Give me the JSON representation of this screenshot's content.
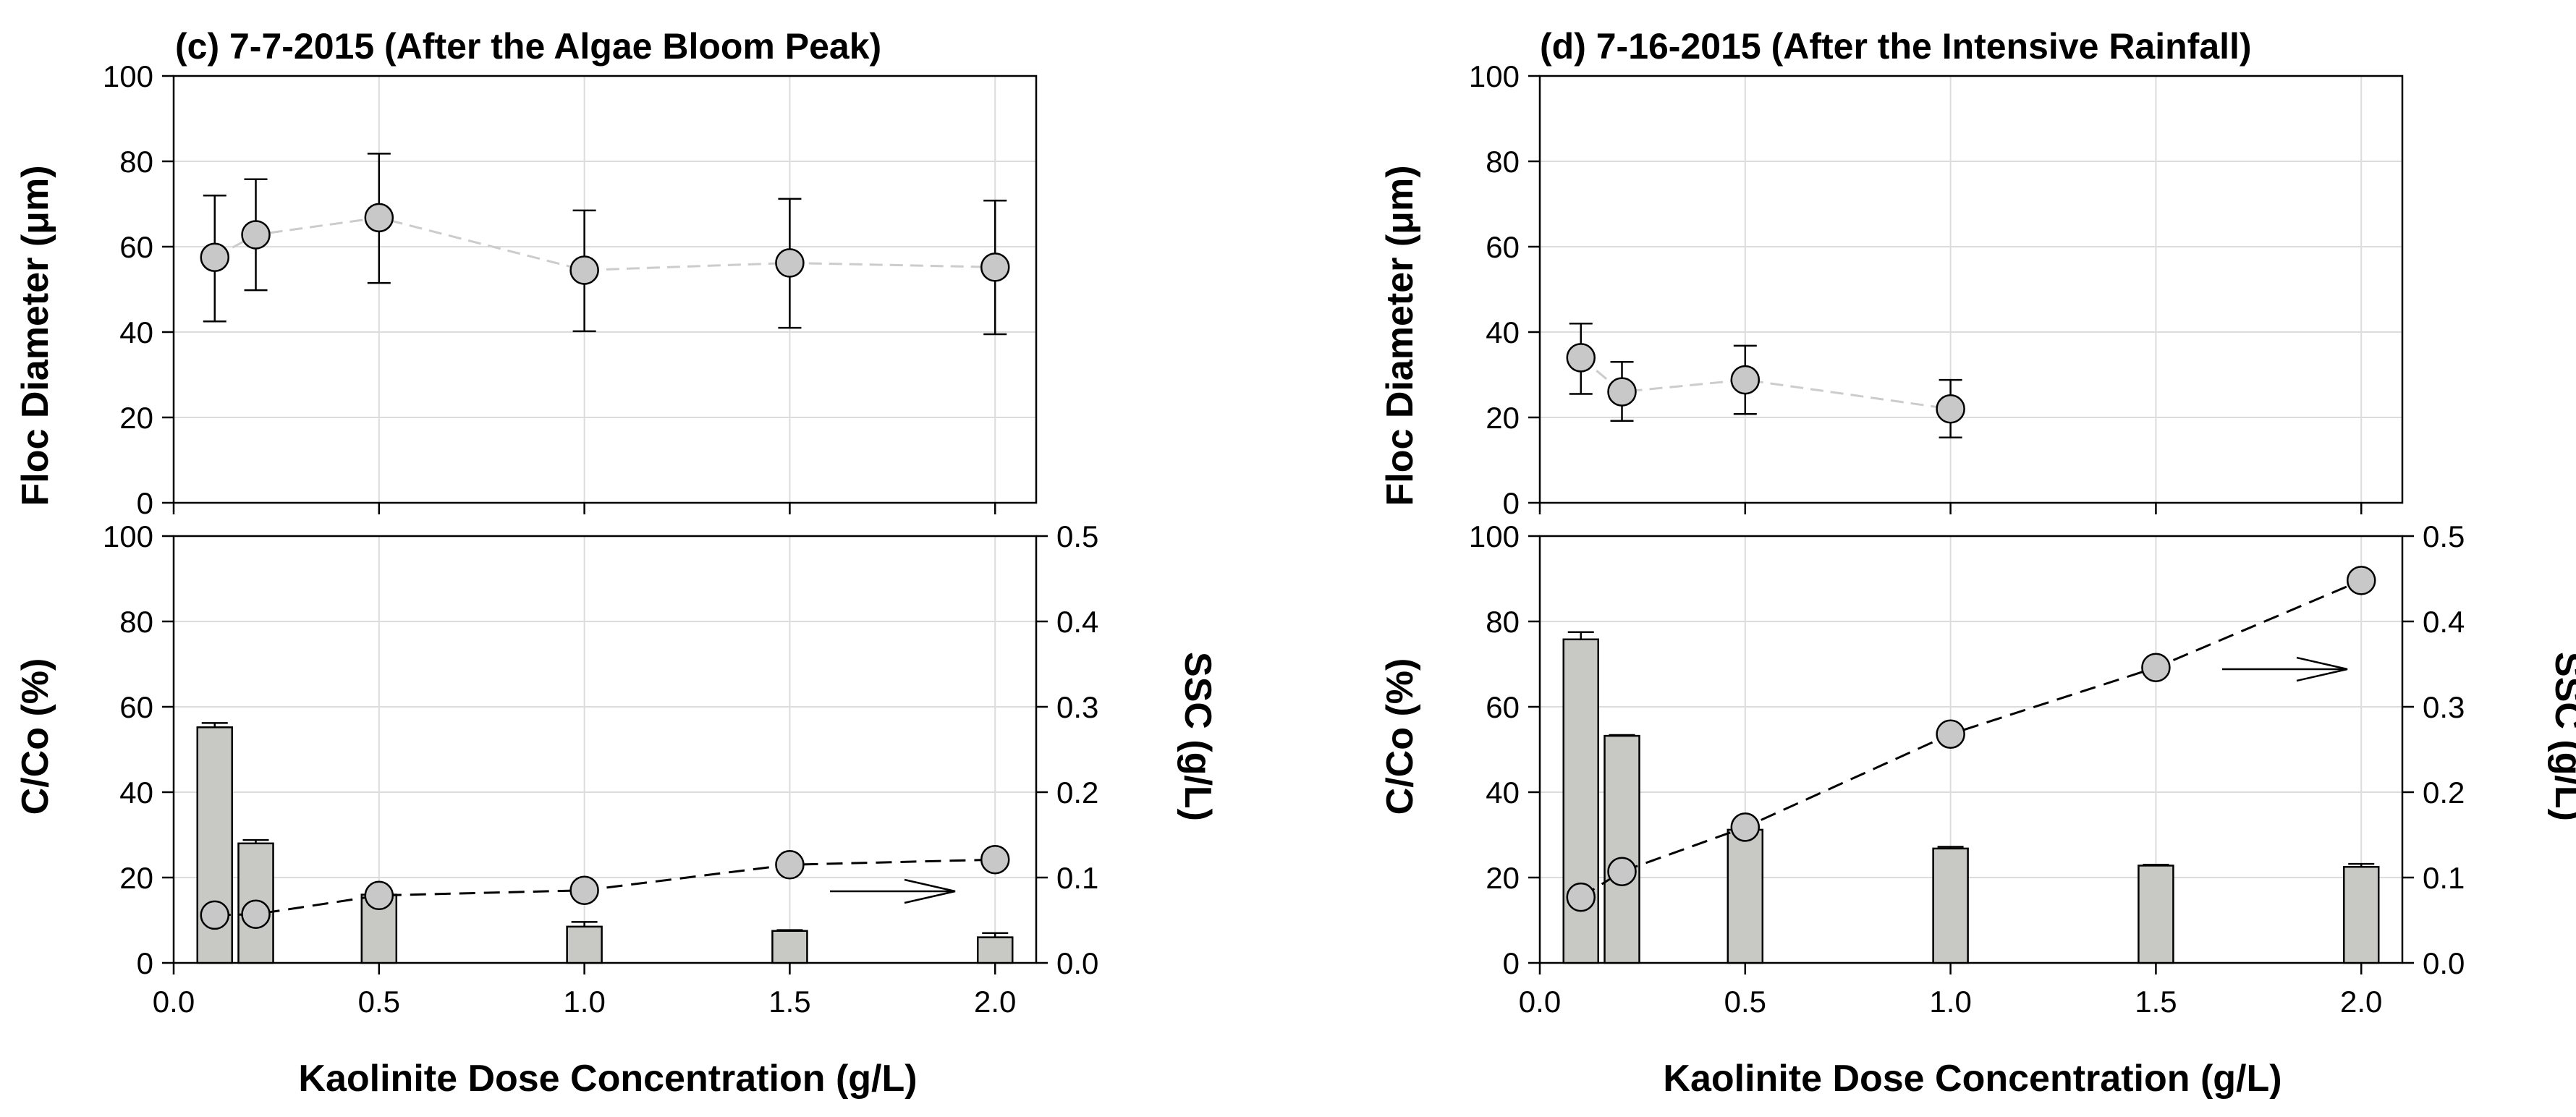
{
  "figure": {
    "shared_xlabel": "Kaolinite Dose Concentration (g/L)"
  },
  "colors": {
    "marker_fill": "#c8c8c8",
    "bar_fill": "#c8c8c4",
    "floc_line": "#cccccc",
    "ssc_line": "#000000",
    "grid": "#dcdcdc"
  },
  "chart_data": [
    {
      "id": "c",
      "type": "scatter",
      "title": "(c) 7-7-2015 (After the Algae Bloom Peak)",
      "xlabel": "",
      "ylabel": "Floc Diameter (μm)",
      "xlim": [
        0.0,
        2.1
      ],
      "ylim": [
        0,
        100
      ],
      "yticks": [
        "0",
        "20",
        "40",
        "60",
        "80",
        "100"
      ],
      "grid": true,
      "series": [
        {
          "name": "Floc Diameter",
          "x": [
            0.1,
            0.2,
            0.5,
            1.0,
            1.5,
            2.0
          ],
          "y": [
            57.5,
            62.8,
            66.8,
            54.5,
            56.2,
            55.2
          ],
          "err_upper": [
            72.0,
            75.8,
            81.8,
            68.5,
            71.2,
            70.8
          ],
          "err_lower": [
            42.5,
            49.8,
            51.5,
            40.2,
            41.0,
            39.5
          ]
        }
      ]
    },
    {
      "id": "c-lower",
      "type": "bar",
      "title": "",
      "xlabel": "Kaolinite Dose Concentration (g/L)",
      "ylabel": "C/Co (%)",
      "ylabel_right": "SSC (g/L)",
      "xlim": [
        0.0,
        2.1
      ],
      "xticks": [
        "0.0",
        "0.5",
        "1.0",
        "1.5",
        "2.0"
      ],
      "ylim": [
        0,
        100
      ],
      "yticks": [
        "0",
        "20",
        "40",
        "60",
        "80",
        "100"
      ],
      "ylim_right": [
        0.0,
        0.5
      ],
      "yticks_right": [
        "0.0",
        "0.1",
        "0.2",
        "0.3",
        "0.4",
        "0.5"
      ],
      "grid": true,
      "series": [
        {
          "name": "C/Co",
          "axis": "left",
          "x": [
            0.1,
            0.2,
            0.5,
            1.0,
            1.5,
            2.0
          ],
          "values": [
            55.2,
            28.0,
            16.0,
            8.5,
            7.5,
            6.0
          ],
          "err_upper": [
            56.2,
            28.8,
            16.0,
            9.6,
            7.7,
            7.0
          ]
        },
        {
          "name": "SSC",
          "axis": "right",
          "x": [
            0.1,
            0.2,
            0.5,
            1.0,
            1.5,
            2.0
          ],
          "values": [
            0.056,
            0.057,
            0.079,
            0.085,
            0.115,
            0.121
          ]
        }
      ],
      "annotation": "arrow pointing right (SSC on right axis)"
    },
    {
      "id": "d",
      "type": "scatter",
      "title": "(d) 7-16-2015 (After the Intensive Rainfall)",
      "xlabel": "",
      "ylabel": "Floc Diameter (μm)",
      "xlim": [
        0.0,
        2.1
      ],
      "ylim": [
        0,
        100
      ],
      "yticks": [
        "0",
        "20",
        "40",
        "60",
        "80",
        "100"
      ],
      "grid": true,
      "series": [
        {
          "name": "Floc Diameter",
          "x": [
            0.1,
            0.2,
            0.5,
            1.0
          ],
          "y": [
            34.0,
            26.0,
            28.8,
            22.0
          ],
          "err_upper": [
            42.0,
            33.0,
            36.8,
            28.8
          ],
          "err_lower": [
            25.5,
            19.2,
            20.8,
            15.3
          ]
        }
      ]
    },
    {
      "id": "d-lower",
      "type": "bar",
      "title": "",
      "xlabel": "Kaolinite Dose Concentration (g/L)",
      "ylabel": "C/Co (%)",
      "ylabel_right": "SSC (g/L)",
      "xlim": [
        0.0,
        2.1
      ],
      "xticks": [
        "0.0",
        "0.5",
        "1.0",
        "1.5",
        "2.0"
      ],
      "ylim": [
        0,
        100
      ],
      "yticks": [
        "0",
        "20",
        "40",
        "60",
        "80",
        "100"
      ],
      "ylim_right": [
        0.0,
        0.5
      ],
      "yticks_right": [
        "0.0",
        "0.1",
        "0.2",
        "0.3",
        "0.4",
        "0.5"
      ],
      "grid": true,
      "series": [
        {
          "name": "C/Co",
          "axis": "left",
          "x": [
            0.1,
            0.2,
            0.5,
            1.0,
            1.5,
            2.0
          ],
          "values": [
            75.8,
            53.2,
            31.2,
            26.8,
            22.8,
            22.5
          ],
          "err_upper": [
            77.5,
            53.4,
            31.4,
            27.2,
            23.0,
            23.2
          ]
        },
        {
          "name": "SSC",
          "axis": "right",
          "x": [
            0.1,
            0.2,
            0.5,
            1.0,
            1.5,
            2.0
          ],
          "values": [
            0.077,
            0.107,
            0.159,
            0.268,
            0.346,
            0.448
          ]
        }
      ],
      "annotation": "arrow pointing right (SSC on right axis)"
    }
  ]
}
